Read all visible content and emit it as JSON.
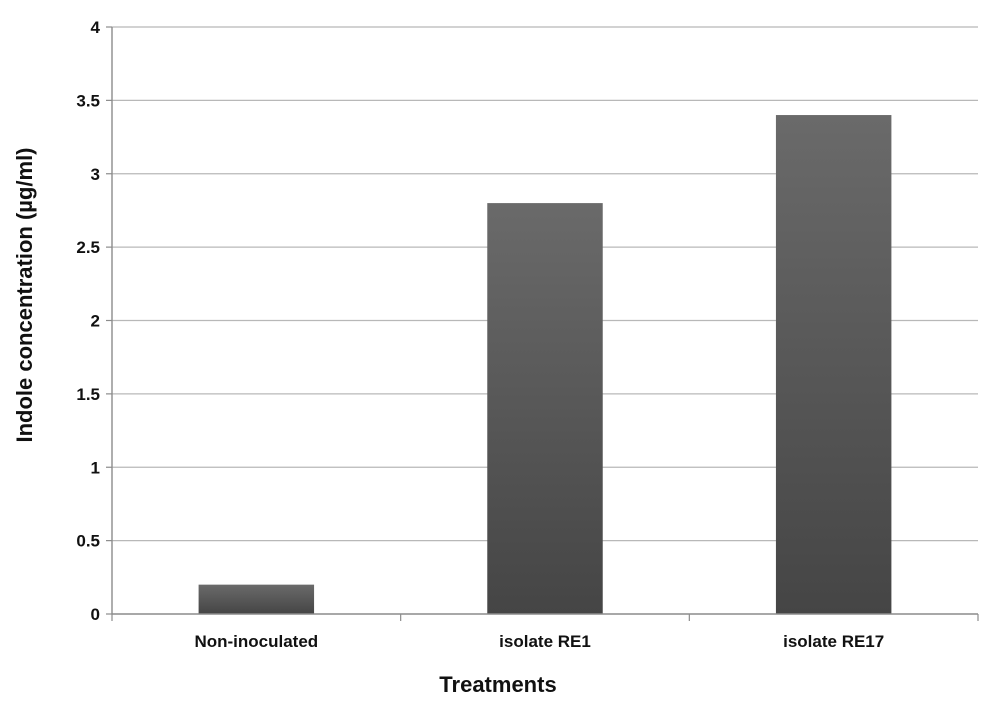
{
  "chart_data": {
    "type": "bar",
    "categories": [
      "Non-inoculated",
      "isolate RE1",
      "isolate RE17"
    ],
    "values": [
      0.2,
      2.8,
      3.4
    ],
    "title": "",
    "xlabel": "Treatments",
    "ylabel": "Indole concentration (µg/ml)",
    "ylim": [
      0,
      4
    ],
    "yticks": [
      "0",
      "0.5",
      "1",
      "1.5",
      "2",
      "2.5",
      "3",
      "3.5",
      "4"
    ],
    "grid": true,
    "legend": "none",
    "colors": {
      "bar_light": "#6a6a6a",
      "bar_dark": "#454545",
      "grid": "#b8b8b8",
      "axis": "#8c8c8c"
    }
  }
}
